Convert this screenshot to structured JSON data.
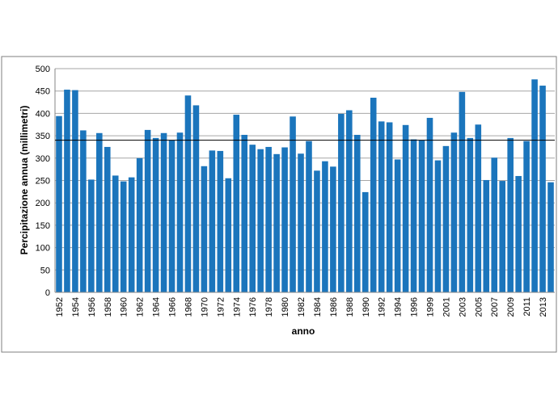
{
  "chart_data": {
    "type": "bar",
    "y_label": "Percipitazione annua (millimetri)",
    "x_label": "anno",
    "categories": [
      "1952",
      null,
      "1954",
      null,
      "1956",
      null,
      "1958",
      null,
      "1960",
      null,
      "1962",
      null,
      "1964",
      null,
      "1966",
      null,
      "1968",
      null,
      "1970",
      null,
      "1972",
      null,
      "1974",
      null,
      "1976",
      null,
      "1978",
      null,
      "1980",
      null,
      "1982",
      null,
      "1984",
      null,
      "1986",
      null,
      "1988",
      null,
      "1990",
      null,
      "1992",
      null,
      "1994",
      null,
      "1996",
      null,
      "1999",
      null,
      "2001",
      null,
      "2003",
      null,
      "2005",
      null,
      "2007",
      null,
      "2009",
      null,
      "2011",
      null,
      "2013",
      null
    ],
    "values": [
      394,
      453,
      452,
      362,
      252,
      356,
      325,
      261,
      248,
      257,
      300,
      363,
      345,
      356,
      340,
      357,
      440,
      418,
      282,
      317,
      316,
      255,
      397,
      352,
      330,
      320,
      325,
      309,
      324,
      393,
      310,
      338,
      272,
      293,
      281,
      399,
      407,
      352,
      224,
      435,
      382,
      380,
      297,
      374,
      342,
      340,
      390,
      295,
      327,
      357,
      448,
      345,
      375,
      251,
      301,
      249,
      345,
      260,
      338,
      476,
      462,
      246
    ],
    "color": "#1b75bc",
    "reference_line": 340,
    "ylim": [
      0,
      500
    ],
    "yticks": [
      0,
      50,
      100,
      150,
      200,
      250,
      300,
      350,
      400,
      450,
      500
    ],
    "grid": true
  }
}
